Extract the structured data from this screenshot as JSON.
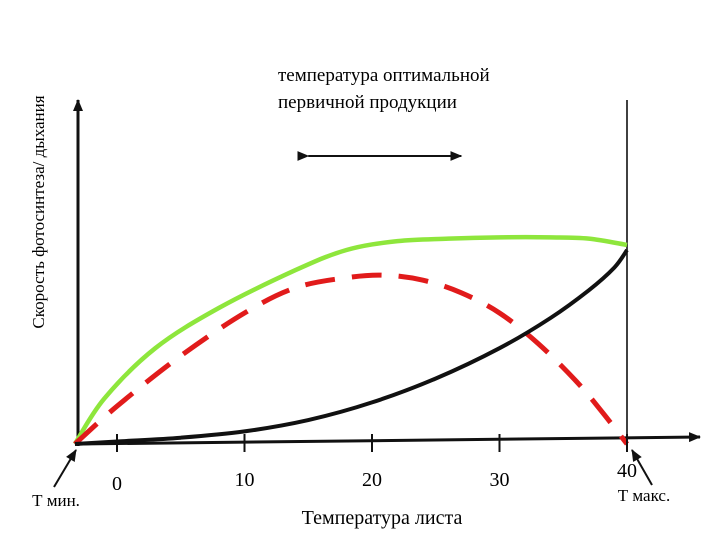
{
  "chart_data": {
    "type": "line",
    "title": "",
    "xlabel": "Температура листа",
    "ylabel": "Скорость фотосинтеза/ дыхания",
    "x_ticks": [
      {
        "value": 0,
        "label": "0"
      },
      {
        "value": 10,
        "label": "10"
      },
      {
        "value": 20,
        "label": "20"
      },
      {
        "value": 30,
        "label": "30"
      },
      {
        "value": 40,
        "label": "40"
      }
    ],
    "xlim": [
      -3.3,
      44
    ],
    "ylim": [
      0,
      100
    ],
    "grid": false,
    "legend": "none",
    "annotations": {
      "optimum_text": [
        "температура оптимальной",
        "первичной продукции"
      ],
      "optimum_range": [
        15,
        27
      ],
      "t_min": {
        "label": "Т мин.",
        "x": -3.3
      },
      "t_max": {
        "label": "Т макс.",
        "x": 40
      }
    },
    "series": [
      {
        "style": "solid",
        "color": "#8ee63c",
        "x": [
          -3.3,
          -1,
          3,
          8,
          14,
          18,
          22,
          26,
          30,
          34,
          37,
          40
        ],
        "y": [
          0,
          18,
          38,
          54,
          69,
          77,
          80.5,
          81.5,
          82,
          82,
          81.5,
          79
        ]
      },
      {
        "style": "dashed",
        "color": "#e11b1b",
        "x": [
          -3.3,
          0,
          5,
          10,
          14,
          18,
          21,
          24,
          27,
          30,
          33,
          36,
          38,
          40
        ],
        "y": [
          0,
          15,
          35,
          52,
          62,
          66,
          67,
          65,
          60,
          52,
          40,
          25,
          13,
          0
        ]
      },
      {
        "style": "solid",
        "color": "#111111",
        "x": [
          -3.3,
          0,
          5,
          10,
          15,
          20,
          25,
          30,
          34,
          37,
          39,
          40
        ],
        "y": [
          0,
          1,
          2.5,
          5,
          9.5,
          16.5,
          26,
          38,
          50,
          61,
          70,
          77
        ]
      }
    ]
  }
}
